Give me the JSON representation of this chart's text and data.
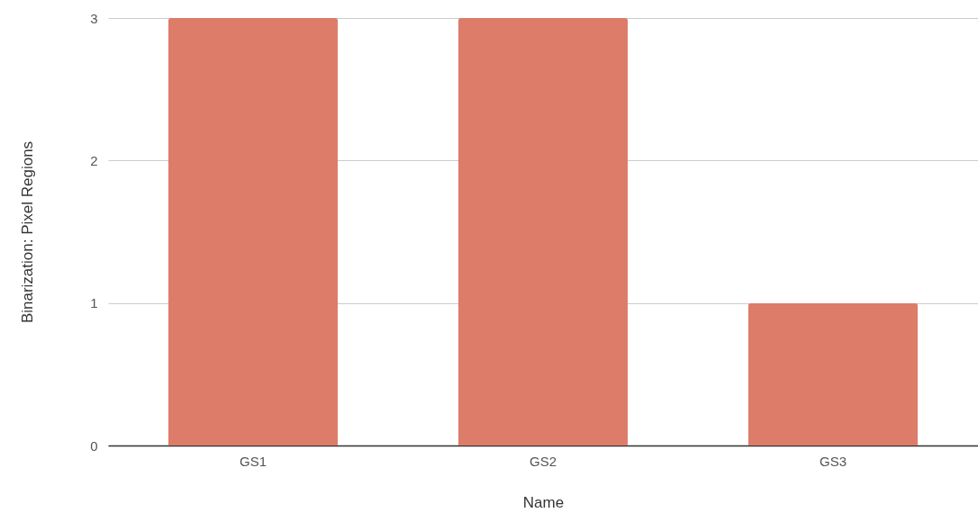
{
  "chart_data": {
    "type": "bar",
    "xlabel": "Name",
    "ylabel": "Binarization: Pixel Regions",
    "categories": [
      "GS1",
      "GS2",
      "GS3"
    ],
    "values": [
      3,
      3,
      1
    ],
    "color": "#dd7c69",
    "ylim": [
      0,
      3
    ],
    "yticks": [
      0,
      1,
      2,
      3
    ],
    "grid": "y"
  }
}
